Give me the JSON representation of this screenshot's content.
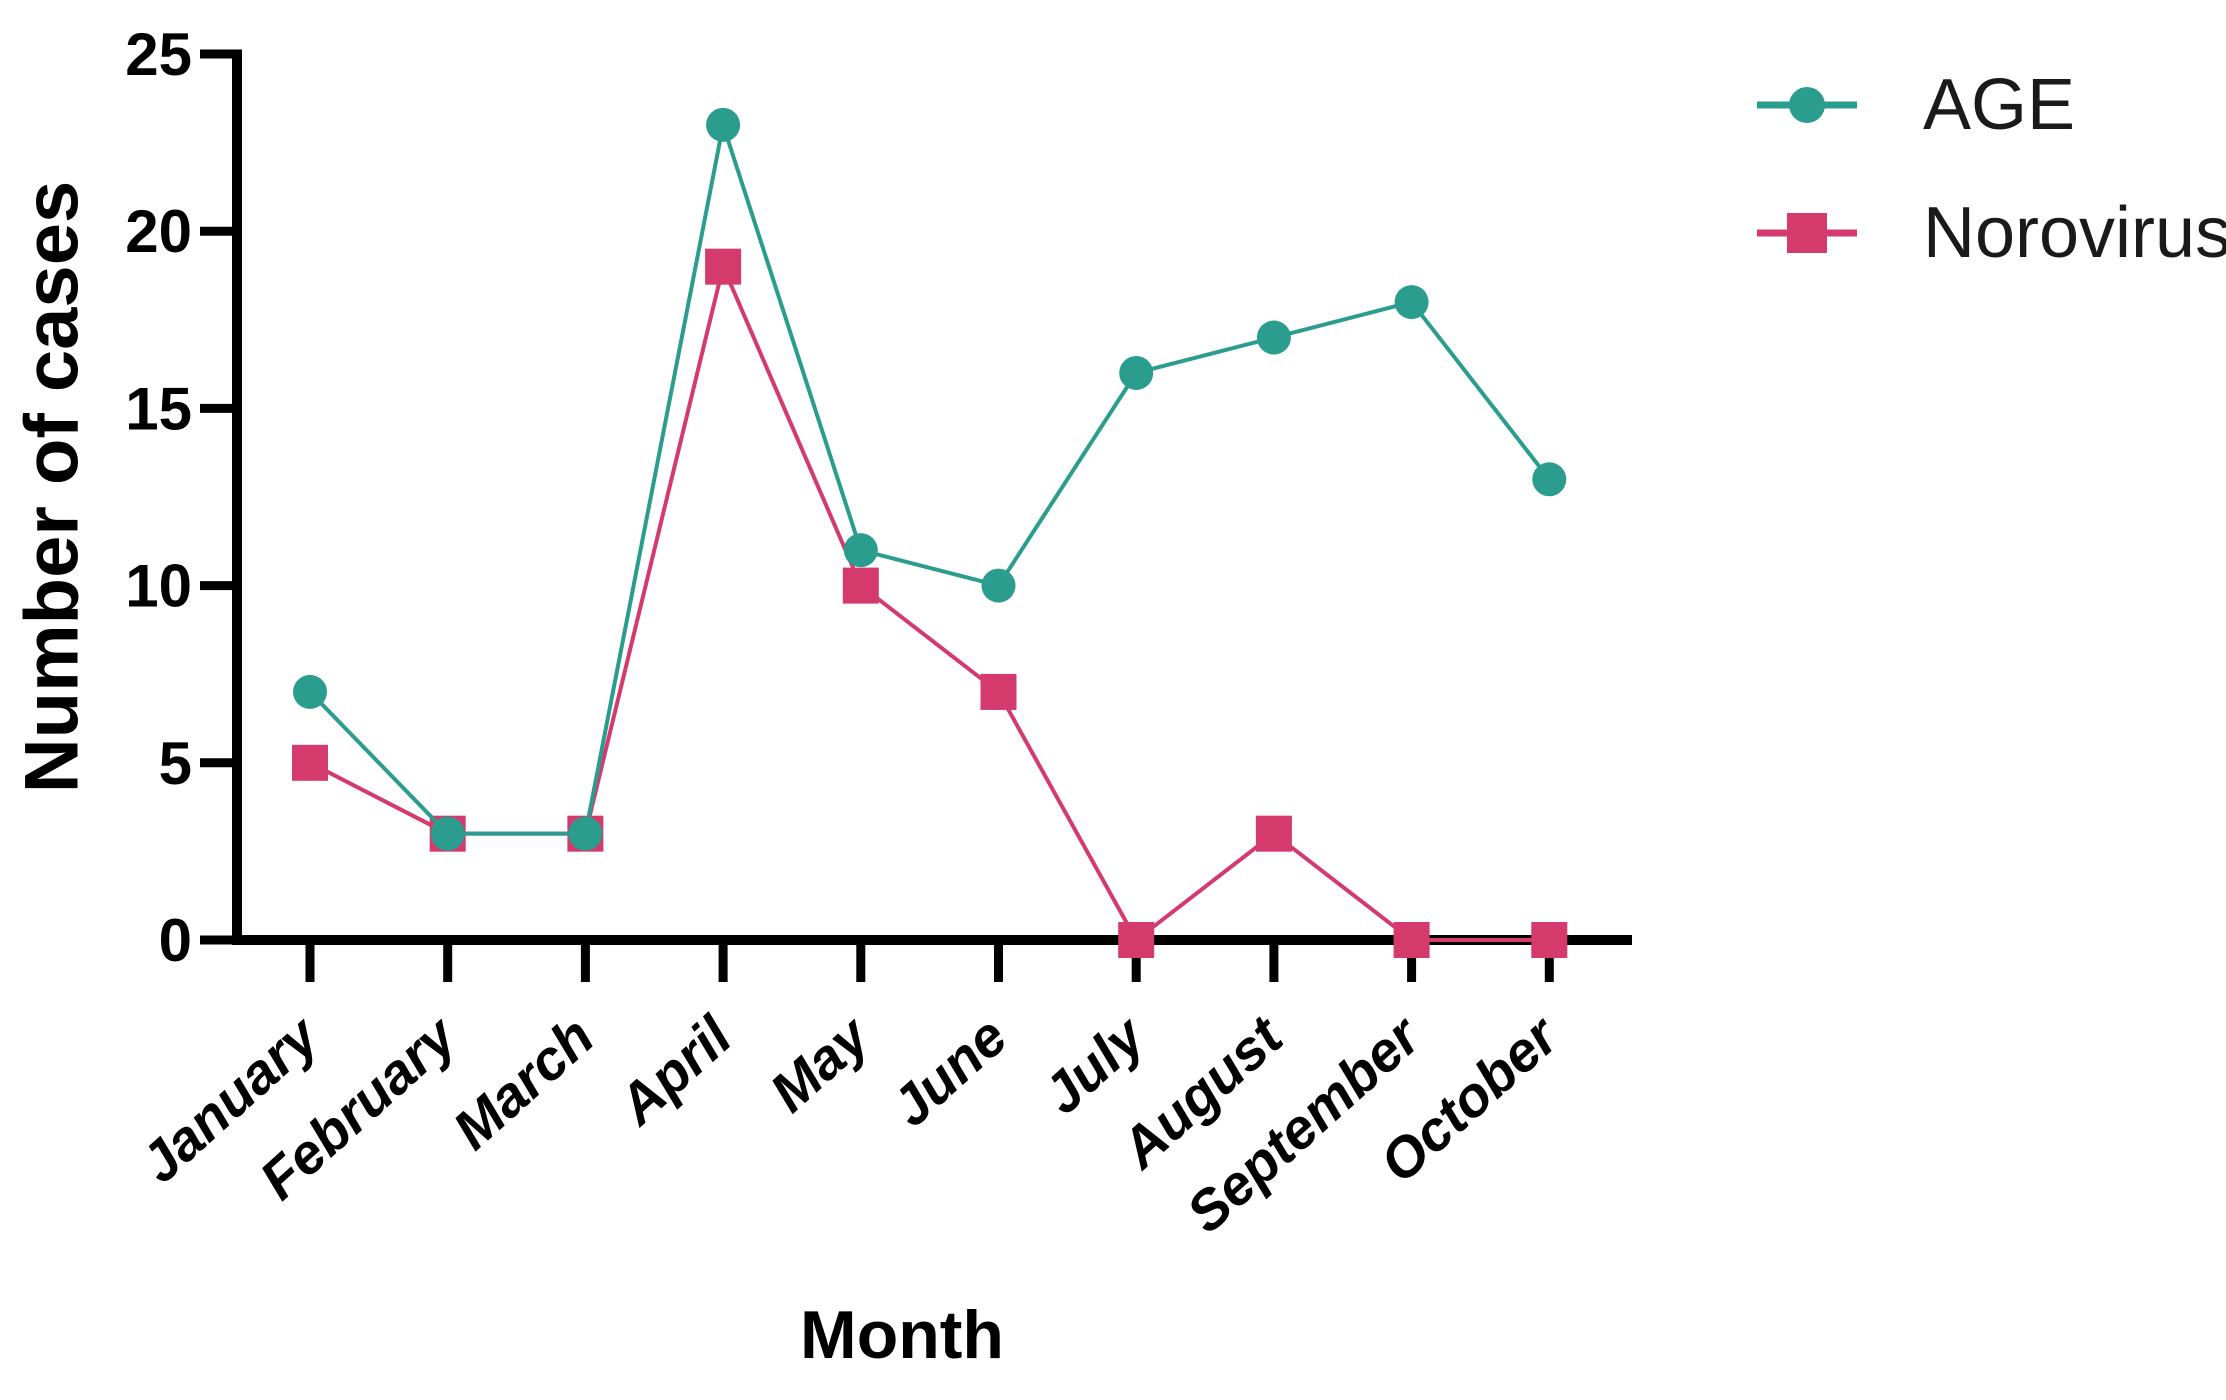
{
  "chart_data": {
    "type": "line",
    "title": "",
    "xlabel": "Month",
    "ylabel": "Number of cases",
    "categories": [
      "January",
      "February",
      "March",
      "April",
      "May",
      "June",
      "July",
      "August",
      "September",
      "October"
    ],
    "series": [
      {
        "name": "AGE",
        "marker": "circle",
        "color": "#2a9d8f",
        "values": [
          7,
          3,
          3,
          23,
          11,
          10,
          16,
          17,
          18,
          13
        ]
      },
      {
        "name": "Norovirus",
        "marker": "square",
        "color": "#d43a6c",
        "values": [
          5,
          3,
          3,
          19,
          10,
          7,
          0,
          3,
          0,
          0
        ]
      }
    ],
    "ylim": [
      0,
      25
    ],
    "yticks": [
      0,
      5,
      10,
      15,
      20,
      25
    ],
    "grid": false,
    "legend_position": "top-right",
    "axis_color": "#000000",
    "text_color": "#000000"
  }
}
